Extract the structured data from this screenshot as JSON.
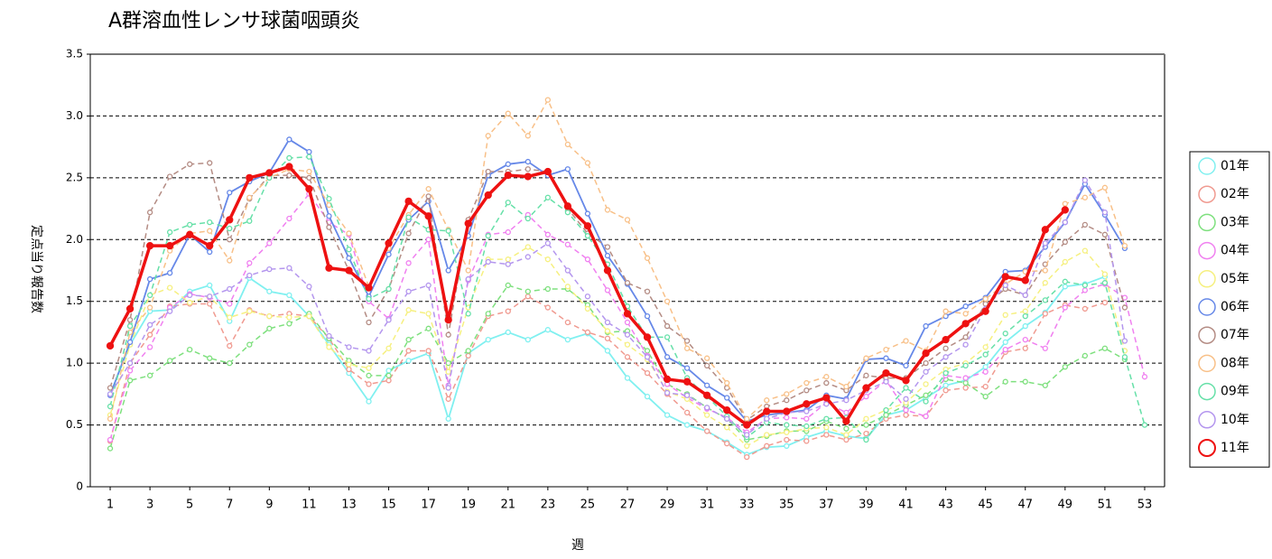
{
  "chart_data": {
    "type": "line",
    "title": "A群溶血性レンサ球菌咽頭炎",
    "x_label": "週",
    "y_label": "定点当り報告数",
    "x": [
      1,
      2,
      3,
      4,
      5,
      6,
      7,
      8,
      9,
      10,
      11,
      12,
      13,
      14,
      15,
      16,
      17,
      18,
      19,
      20,
      21,
      22,
      23,
      24,
      25,
      26,
      27,
      28,
      29,
      30,
      31,
      32,
      33,
      34,
      35,
      36,
      37,
      38,
      39,
      40,
      41,
      42,
      43,
      44,
      45,
      46,
      47,
      48,
      49,
      50,
      51,
      52,
      53
    ],
    "xlim": [
      0,
      54
    ],
    "xticks": [
      1,
      3,
      5,
      7,
      9,
      11,
      13,
      15,
      17,
      19,
      21,
      23,
      25,
      27,
      29,
      31,
      33,
      35,
      37,
      39,
      41,
      43,
      45,
      47,
      49,
      51,
      53
    ],
    "ylim": [
      0,
      3.5
    ],
    "yticks": [
      0,
      0.5,
      {
        "value": 1,
        "label": "1.0"
      },
      1.5,
      {
        "value": 2,
        "label": "2.0"
      },
      2.5,
      {
        "value": 3,
        "label": "3.0"
      },
      3.5
    ],
    "grid": true,
    "legend": "right",
    "series": [
      {
        "name": "01年",
        "color": "#80f0f0",
        "line_style": "solid",
        "values": [
          0.75,
          1.15,
          1.42,
          1.43,
          1.58,
          1.63,
          1.34,
          1.69,
          1.58,
          1.55,
          1.38,
          1.15,
          0.92,
          0.69,
          0.94,
          1.02,
          1.08,
          0.55,
          1.08,
          1.19,
          1.25,
          1.19,
          1.27,
          1.19,
          1.24,
          1.1,
          0.88,
          0.73,
          0.58,
          0.5,
          0.45,
          0.36,
          0.26,
          0.32,
          0.33,
          0.4,
          0.45,
          0.41,
          0.39,
          0.58,
          0.62,
          0.72,
          0.82,
          0.86,
          0.97,
          1.17,
          1.3,
          1.41,
          1.62,
          1.64,
          1.7,
          null,
          null
        ]
      },
      {
        "name": "02年",
        "color": "#f09a90",
        "line_style": "dashed",
        "values": [
          0.37,
          1.0,
          1.23,
          1.46,
          1.48,
          1.48,
          1.14,
          1.43,
          1.38,
          1.4,
          1.38,
          1.2,
          0.95,
          0.83,
          0.86,
          1.1,
          1.1,
          0.71,
          1.06,
          1.38,
          1.42,
          1.54,
          1.45,
          1.33,
          1.25,
          1.2,
          1.05,
          0.92,
          0.75,
          0.6,
          0.45,
          0.35,
          0.24,
          0.33,
          0.38,
          0.37,
          0.42,
          0.38,
          0.43,
          0.55,
          0.58,
          0.57,
          0.78,
          0.8,
          0.81,
          1.09,
          1.12,
          1.4,
          1.47,
          1.44,
          1.49,
          null,
          null
        ]
      },
      {
        "name": "03年",
        "color": "#7ee07e",
        "line_style": "dashed",
        "values": [
          0.31,
          0.86,
          0.9,
          1.02,
          1.11,
          1.04,
          1.0,
          1.15,
          1.28,
          1.32,
          1.4,
          1.2,
          1.02,
          0.9,
          0.9,
          1.19,
          1.28,
          1.0,
          1.1,
          1.4,
          1.63,
          1.58,
          1.6,
          1.6,
          1.47,
          1.25,
          1.26,
          1.1,
          0.83,
          0.75,
          0.64,
          0.55,
          0.38,
          0.41,
          0.45,
          0.45,
          0.53,
          0.47,
          0.5,
          0.58,
          0.66,
          0.74,
          0.87,
          0.84,
          0.73,
          0.85,
          0.85,
          0.82,
          0.97,
          1.06,
          1.12,
          1.03,
          null
        ]
      },
      {
        "name": "04年",
        "color": "#f080f0",
        "line_style": "dashed",
        "values": [
          0.38,
          0.94,
          1.13,
          1.45,
          1.56,
          1.53,
          1.48,
          1.81,
          1.97,
          2.17,
          2.37,
          2.14,
          2.04,
          1.5,
          1.36,
          1.81,
          2.0,
          0.82,
          1.67,
          2.04,
          2.06,
          2.2,
          2.04,
          1.96,
          1.84,
          1.59,
          1.33,
          1.06,
          0.83,
          0.72,
          0.63,
          0.56,
          0.44,
          0.55,
          0.56,
          0.55,
          0.68,
          0.6,
          0.73,
          0.86,
          0.62,
          0.57,
          0.9,
          0.88,
          0.93,
          1.11,
          1.19,
          1.12,
          1.45,
          1.59,
          1.64,
          1.53,
          0.89
        ]
      },
      {
        "name": "05年",
        "color": "#f6f080",
        "line_style": "dashed",
        "values": [
          0.58,
          1.15,
          1.55,
          1.61,
          1.49,
          1.54,
          1.37,
          1.42,
          1.38,
          1.37,
          1.38,
          1.13,
          0.99,
          0.96,
          1.12,
          1.43,
          1.4,
          0.93,
          1.45,
          1.84,
          1.84,
          1.94,
          1.84,
          1.62,
          1.44,
          1.26,
          1.15,
          1.03,
          0.77,
          0.71,
          0.58,
          0.48,
          0.33,
          0.42,
          0.44,
          0.47,
          0.48,
          0.42,
          0.55,
          0.62,
          0.68,
          0.83,
          0.95,
          1.0,
          1.13,
          1.39,
          1.42,
          1.65,
          1.82,
          1.91,
          1.72,
          1.1,
          null
        ]
      },
      {
        "name": "06年",
        "color": "#6688e8",
        "line_style": "solid",
        "values": [
          0.74,
          1.17,
          1.68,
          1.73,
          2.04,
          1.9,
          2.38,
          2.47,
          2.54,
          2.81,
          2.71,
          2.19,
          1.85,
          1.54,
          1.88,
          2.16,
          2.31,
          1.75,
          2.03,
          2.52,
          2.61,
          2.63,
          2.52,
          2.57,
          2.21,
          1.87,
          1.64,
          1.38,
          1.05,
          0.96,
          0.82,
          0.72,
          0.53,
          0.58,
          0.6,
          0.62,
          0.74,
          0.71,
          1.03,
          1.04,
          0.98,
          1.3,
          1.38,
          1.46,
          1.53,
          1.74,
          1.75,
          1.94,
          2.14,
          2.45,
          2.2,
          1.93,
          null
        ]
      },
      {
        "name": "07年",
        "color": "#b48c84",
        "line_style": "dashed",
        "values": [
          0.8,
          1.35,
          2.22,
          2.51,
          2.61,
          2.62,
          2.0,
          2.33,
          2.52,
          2.52,
          2.5,
          2.1,
          1.75,
          1.33,
          1.6,
          2.05,
          2.35,
          1.23,
          2.16,
          2.55,
          2.55,
          2.57,
          2.55,
          2.25,
          2.05,
          1.94,
          1.65,
          1.58,
          1.3,
          1.18,
          0.98,
          0.8,
          0.54,
          0.65,
          0.7,
          0.78,
          0.84,
          0.78,
          0.9,
          0.88,
          0.88,
          1.0,
          1.12,
          1.21,
          1.48,
          1.6,
          1.55,
          1.8,
          1.98,
          2.12,
          2.04,
          1.45,
          null
        ]
      },
      {
        "name": "08年",
        "color": "#f8c088",
        "line_style": "dashed",
        "values": [
          0.55,
          1.25,
          1.45,
          1.91,
          2.05,
          2.07,
          1.83,
          2.34,
          2.5,
          2.57,
          2.55,
          2.28,
          2.05,
          1.62,
          1.93,
          2.2,
          2.41,
          2.08,
          1.75,
          2.84,
          3.02,
          2.84,
          3.13,
          2.77,
          2.62,
          2.24,
          2.16,
          1.85,
          1.5,
          1.12,
          1.04,
          0.84,
          0.55,
          0.7,
          0.75,
          0.84,
          0.89,
          0.81,
          1.04,
          1.11,
          1.18,
          1.1,
          1.42,
          1.4,
          1.52,
          1.64,
          1.74,
          1.75,
          2.29,
          2.34,
          2.42,
          1.95,
          null
        ]
      },
      {
        "name": "09年",
        "color": "#66e0a8",
        "line_style": "dashed",
        "values": [
          0.65,
          1.3,
          1.55,
          2.06,
          2.12,
          2.14,
          2.09,
          2.15,
          2.5,
          2.66,
          2.67,
          2.33,
          1.92,
          1.52,
          1.6,
          2.18,
          2.08,
          2.07,
          1.4,
          2.03,
          2.3,
          2.17,
          2.34,
          2.22,
          2.03,
          1.8,
          1.46,
          1.21,
          1.21,
          0.88,
          0.73,
          0.57,
          0.4,
          0.52,
          0.5,
          0.49,
          0.55,
          0.56,
          0.38,
          0.62,
          0.8,
          0.69,
          0.92,
          0.98,
          1.07,
          1.24,
          1.38,
          1.51,
          1.66,
          1.63,
          1.65,
          1.05,
          0.5
        ]
      },
      {
        "name": "10年",
        "color": "#b496ee",
        "line_style": "dashed",
        "values": [
          0.75,
          1.0,
          1.31,
          1.42,
          1.55,
          1.54,
          1.6,
          1.71,
          1.76,
          1.77,
          1.62,
          1.22,
          1.13,
          1.1,
          1.35,
          1.58,
          1.63,
          0.8,
          1.68,
          1.82,
          1.8,
          1.86,
          1.97,
          1.75,
          1.54,
          1.33,
          1.23,
          1.05,
          0.76,
          0.74,
          0.64,
          0.55,
          0.42,
          0.55,
          0.6,
          0.61,
          0.67,
          0.7,
          0.78,
          0.85,
          0.71,
          0.93,
          1.05,
          1.15,
          1.44,
          1.63,
          1.55,
          1.97,
          2.14,
          2.48,
          2.22,
          1.18,
          null
        ]
      },
      {
        "name": "11年",
        "color": "#ee1111",
        "line_style": "bold",
        "values": [
          1.14,
          1.44,
          1.95,
          1.95,
          2.04,
          1.95,
          2.16,
          2.5,
          2.54,
          2.59,
          2.41,
          1.77,
          1.75,
          1.61,
          1.97,
          2.31,
          2.19,
          1.35,
          2.13,
          2.36,
          2.52,
          2.51,
          2.55,
          2.27,
          2.11,
          1.75,
          1.4,
          1.21,
          0.87,
          0.85,
          0.74,
          0.62,
          0.5,
          0.61,
          0.61,
          0.67,
          0.72,
          0.53,
          0.8,
          0.92,
          0.86,
          1.08,
          1.19,
          1.32,
          1.42,
          1.7,
          1.67,
          2.08,
          2.24,
          null,
          null,
          null,
          null
        ]
      }
    ]
  }
}
